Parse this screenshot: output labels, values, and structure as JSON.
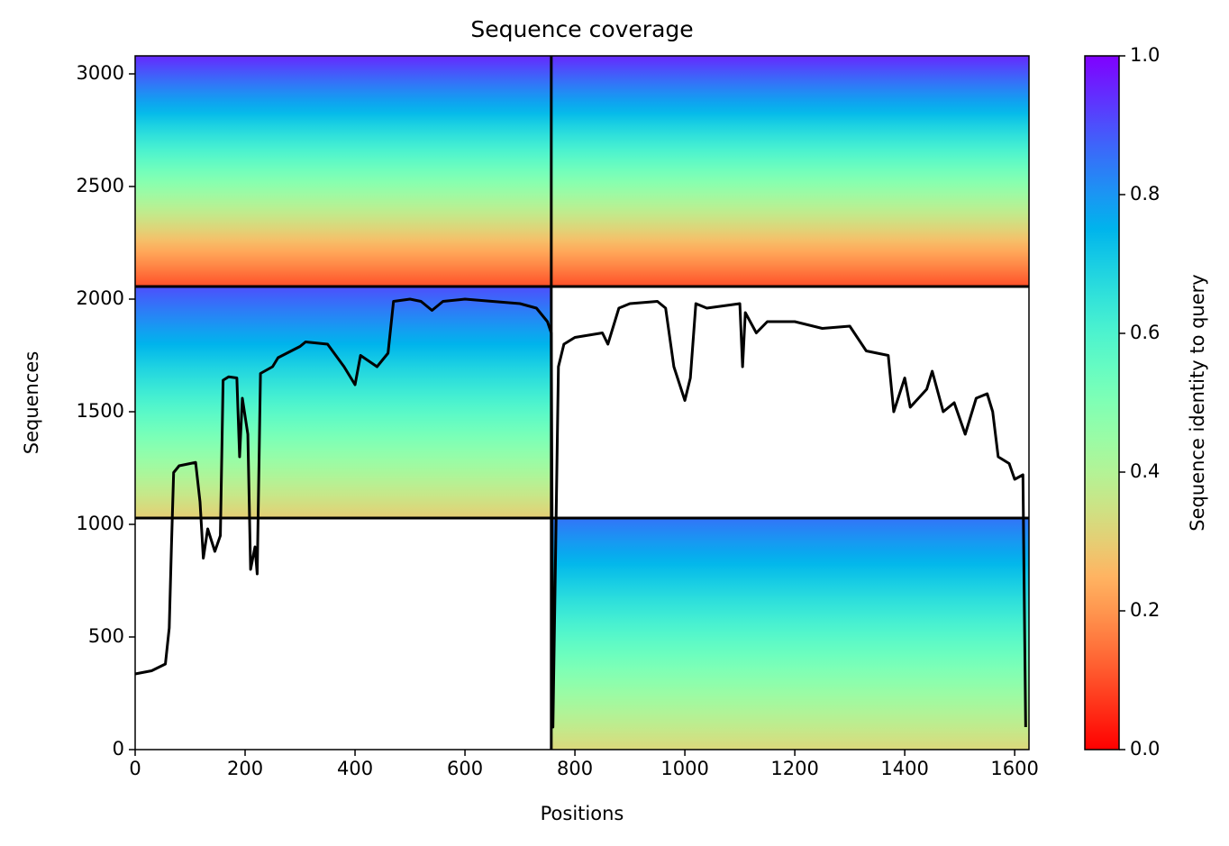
{
  "chart_data": {
    "type": "coverage",
    "title": "Sequence coverage",
    "xlabel": "Positions",
    "ylabel": "Sequences",
    "colorbar_label": "Sequence identity to query",
    "colormap": "rainbow_r",
    "xlim": [
      0,
      1626
    ],
    "ylim": [
      0,
      3080
    ],
    "xticks": [
      0,
      200,
      400,
      600,
      800,
      1000,
      1200,
      1400,
      1600
    ],
    "yticks": [
      0,
      500,
      1000,
      1500,
      2000,
      2500,
      3000
    ],
    "clim": [
      0,
      1
    ],
    "cticks": [
      {
        "value": 0,
        "label": "0.0"
      },
      0.2,
      0.4,
      0.6,
      0.8,
      {
        "value": 1,
        "label": "1.0"
      }
    ],
    "blocks": [
      {
        "x": [
          0,
          757
        ],
        "y": [
          2056,
          3080
        ],
        "identity": [
          0.1,
          0.95
        ]
      },
      {
        "x": [
          757,
          1626
        ],
        "y": [
          2056,
          3080
        ],
        "identity": [
          0.1,
          0.95
        ]
      },
      {
        "x": [
          0,
          757
        ],
        "y": [
          1028,
          2056
        ],
        "identity": [
          0.3,
          0.9
        ]
      },
      {
        "x": [
          757,
          1626
        ],
        "y": [
          0,
          1028
        ],
        "identity": [
          0.32,
          0.85
        ]
      }
    ],
    "dividers": {
      "x": [
        757
      ],
      "y": [
        1028,
        2056
      ]
    },
    "coverage": {
      "x": [
        0,
        30,
        55,
        62,
        66,
        70,
        80,
        110,
        118,
        124,
        132,
        145,
        155,
        160,
        170,
        185,
        190,
        195,
        205,
        210,
        218,
        222,
        228,
        250,
        260,
        300,
        310,
        350,
        380,
        400,
        410,
        440,
        460,
        470,
        500,
        520,
        540,
        560,
        600,
        700,
        730,
        750,
        757,
        760,
        770,
        780,
        800,
        850,
        860,
        880,
        900,
        950,
        965,
        980,
        1000,
        1010,
        1020,
        1040,
        1100,
        1105,
        1110,
        1130,
        1150,
        1200,
        1250,
        1300,
        1330,
        1370,
        1380,
        1400,
        1410,
        1440,
        1450,
        1470,
        1490,
        1510,
        1530,
        1550,
        1560,
        1570,
        1590,
        1600,
        1615,
        1620
      ],
      "values": [
        336,
        350,
        380,
        540,
        900,
        1230,
        1260,
        1275,
        1100,
        850,
        980,
        880,
        950,
        1640,
        1655,
        1650,
        1300,
        1560,
        1400,
        800,
        900,
        780,
        1670,
        1700,
        1740,
        1790,
        1810,
        1800,
        1700,
        1620,
        1750,
        1700,
        1760,
        1990,
        2000,
        1990,
        1950,
        1990,
        2000,
        1980,
        1960,
        1900,
        1850,
        100,
        1700,
        1800,
        1830,
        1850,
        1800,
        1960,
        1980,
        1990,
        1960,
        1700,
        1550,
        1650,
        1980,
        1960,
        1980,
        1700,
        1940,
        1850,
        1900,
        1900,
        1870,
        1880,
        1770,
        1750,
        1500,
        1650,
        1520,
        1600,
        1680,
        1500,
        1540,
        1400,
        1560,
        1580,
        1500,
        1300,
        1270,
        1200,
        1220,
        100
      ]
    }
  }
}
